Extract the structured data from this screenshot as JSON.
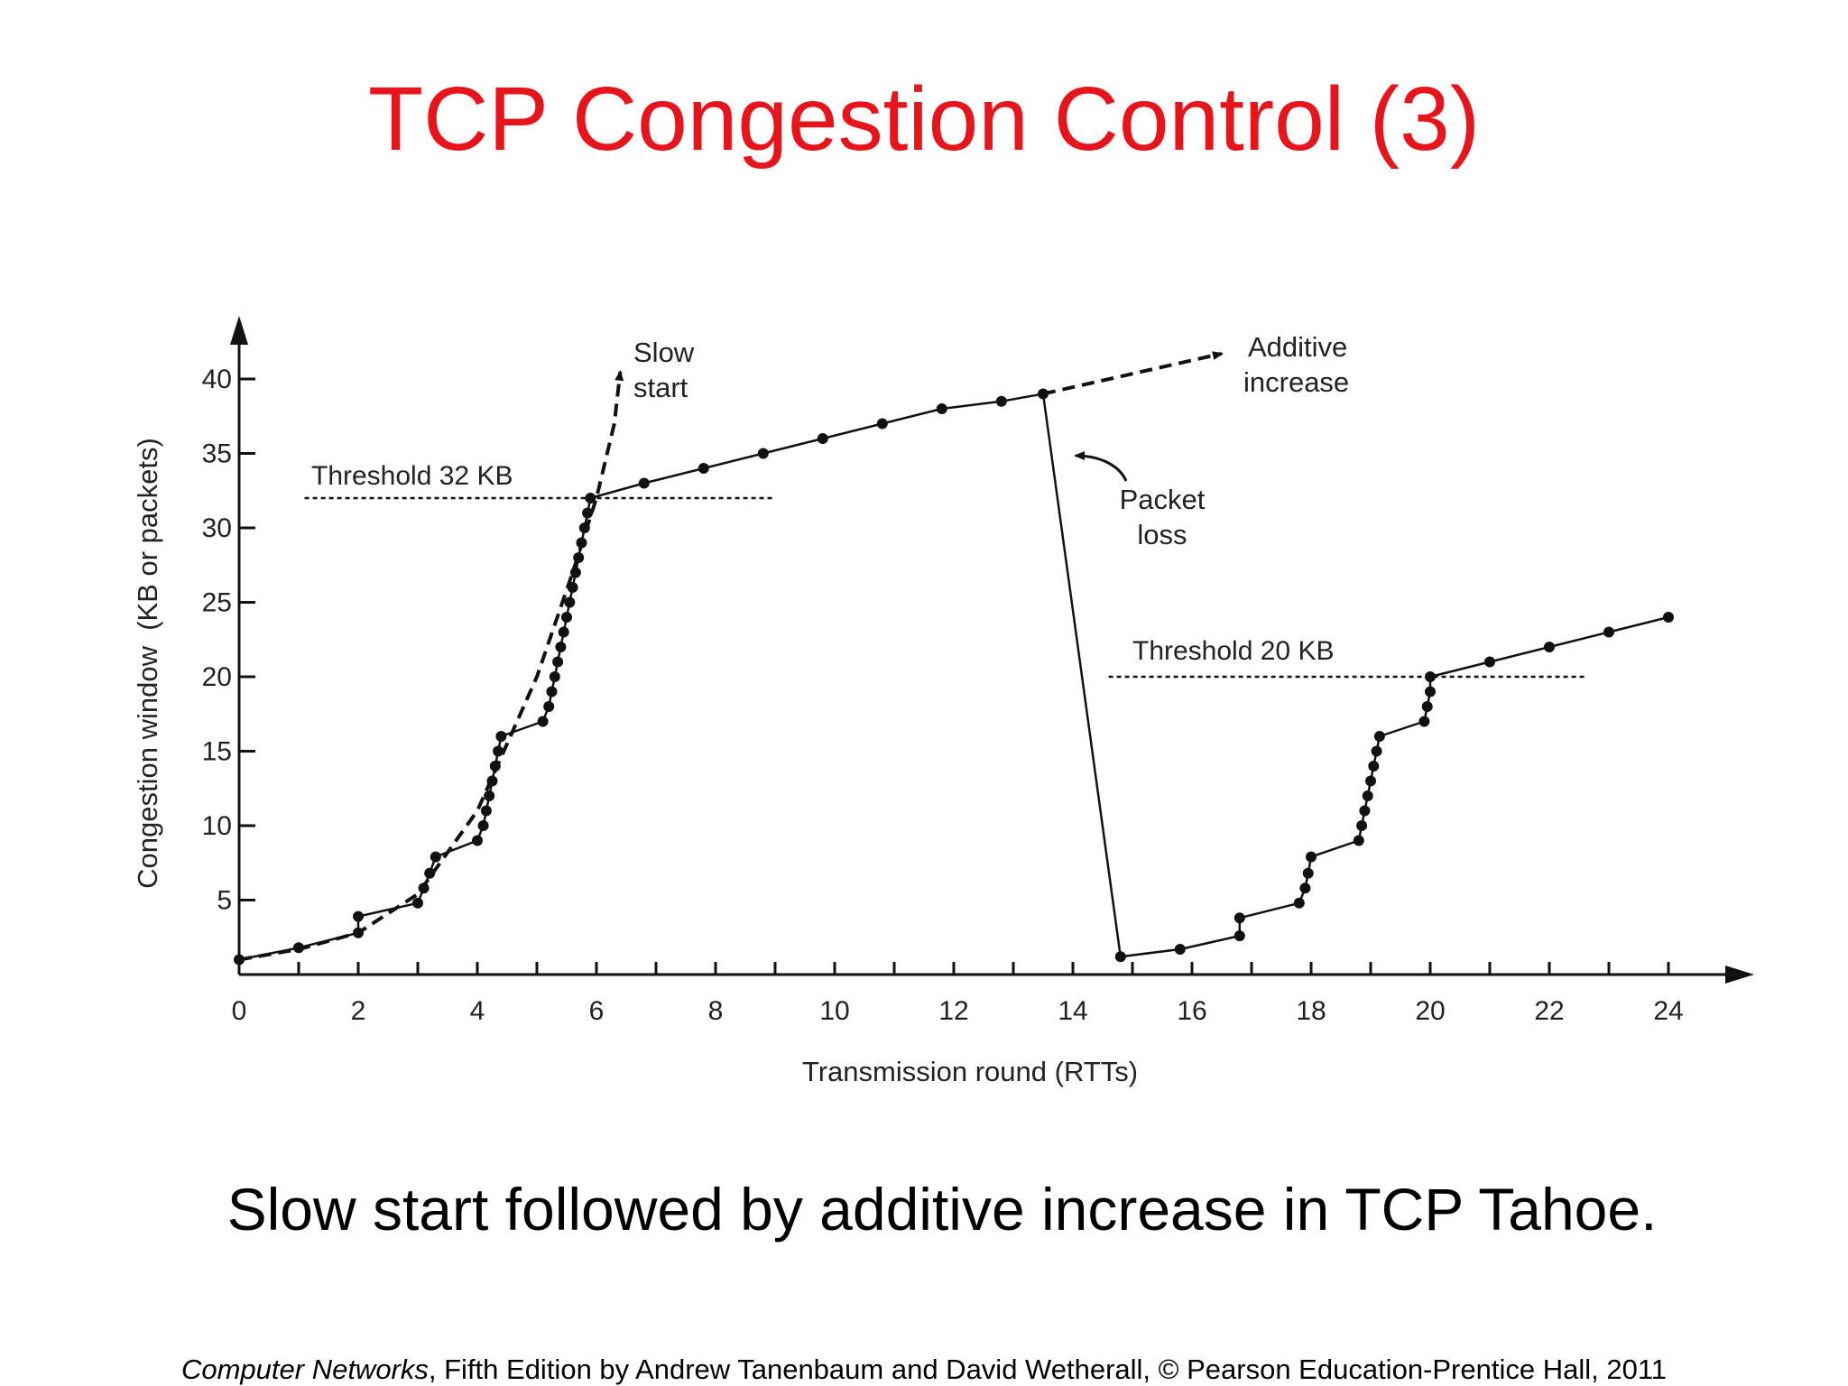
{
  "title": "TCP Congestion Control (3)",
  "caption": "Slow start followed by additive increase in TCP Tahoe.",
  "footer": {
    "book": "Computer Networks",
    "rest": ", Fifth Edition by Andrew Tanenbaum and David Wetherall, © Pearson Education-Prentice Hall, 2011"
  },
  "colors": {
    "title": "#e8141b",
    "ink": "#111111"
  },
  "chart_data": {
    "type": "line",
    "xlabel": "Transmission round (RTTs)",
    "ylabel": "Congestion window  (KB or packets)",
    "xlim": [
      0,
      25
    ],
    "ylim": [
      0,
      43
    ],
    "x_ticks": [
      "0",
      "2",
      "4",
      "6",
      "8",
      "10",
      "12",
      "14",
      "16",
      "18",
      "20",
      "22",
      "24"
    ],
    "y_ticks": [
      "5",
      "10",
      "15",
      "20",
      "25",
      "30",
      "35",
      "40"
    ],
    "grid": false,
    "annotations": {
      "slow_start": [
        "Slow",
        "start"
      ],
      "additive_increase": [
        "Additive",
        "increase"
      ],
      "packet_loss": [
        "Packet",
        "loss"
      ],
      "threshold_1": "Threshold 32 KB",
      "threshold_2": "Threshold 20 KB"
    },
    "thresholds": [
      {
        "label": "Threshold 32 KB",
        "y": 32,
        "x_range": [
          1.1,
          9
        ]
      },
      {
        "label": "Threshold 20 KB",
        "y": 20,
        "x_range": [
          14.6,
          22.6
        ]
      }
    ],
    "slow_start_curve": [
      [
        0,
        1
      ],
      [
        1,
        1.7
      ],
      [
        2,
        2.8
      ],
      [
        3,
        5.4
      ],
      [
        4,
        11
      ],
      [
        5,
        20
      ],
      [
        5.6,
        27
      ],
      [
        6,
        32
      ],
      [
        6.3,
        37
      ],
      [
        6.4,
        40.5
      ]
    ],
    "additive_extension": [
      [
        13.5,
        39
      ],
      [
        16.5,
        41.7
      ]
    ],
    "series": [
      {
        "name": "",
        "values": [
          [
            0,
            1
          ],
          [
            1,
            1.8
          ],
          [
            2,
            2.8
          ],
          [
            2,
            3.9
          ],
          [
            3,
            4.8
          ],
          [
            3.1,
            5.8
          ],
          [
            3.2,
            6.8
          ],
          [
            3.3,
            7.9
          ],
          [
            4,
            9
          ],
          [
            4.1,
            10
          ],
          [
            4.15,
            11
          ],
          [
            4.2,
            12
          ],
          [
            4.25,
            13
          ],
          [
            4.3,
            14
          ],
          [
            4.35,
            15
          ],
          [
            4.4,
            16
          ],
          [
            5.1,
            17
          ],
          [
            5.2,
            18
          ],
          [
            5.25,
            19
          ],
          [
            5.3,
            20
          ],
          [
            5.35,
            21
          ],
          [
            5.4,
            22
          ],
          [
            5.45,
            23
          ],
          [
            5.5,
            24
          ],
          [
            5.55,
            25
          ],
          [
            5.6,
            26
          ],
          [
            5.65,
            27
          ],
          [
            5.7,
            28
          ],
          [
            5.75,
            29
          ],
          [
            5.8,
            30
          ],
          [
            5.85,
            31
          ],
          [
            5.9,
            32
          ],
          [
            6.8,
            33
          ],
          [
            7.8,
            34
          ],
          [
            8.8,
            35
          ],
          [
            9.8,
            36
          ],
          [
            10.8,
            37
          ],
          [
            11.8,
            38
          ],
          [
            12.8,
            38.5
          ],
          [
            13.5,
            39
          ],
          [
            14.8,
            1.2
          ],
          [
            15.8,
            1.7
          ],
          [
            16.8,
            2.6
          ],
          [
            16.8,
            3.8
          ],
          [
            17.8,
            4.8
          ],
          [
            17.9,
            5.8
          ],
          [
            17.95,
            6.8
          ],
          [
            18,
            7.9
          ],
          [
            18.8,
            9
          ],
          [
            18.85,
            10
          ],
          [
            18.9,
            11
          ],
          [
            18.95,
            12
          ],
          [
            19,
            13
          ],
          [
            19.05,
            14
          ],
          [
            19.1,
            15
          ],
          [
            19.15,
            16
          ],
          [
            19.9,
            17
          ],
          [
            19.95,
            18
          ],
          [
            20,
            19
          ],
          [
            20,
            20
          ],
          [
            21,
            21
          ],
          [
            22,
            22
          ],
          [
            23,
            23
          ],
          [
            24,
            24
          ]
        ]
      }
    ]
  }
}
